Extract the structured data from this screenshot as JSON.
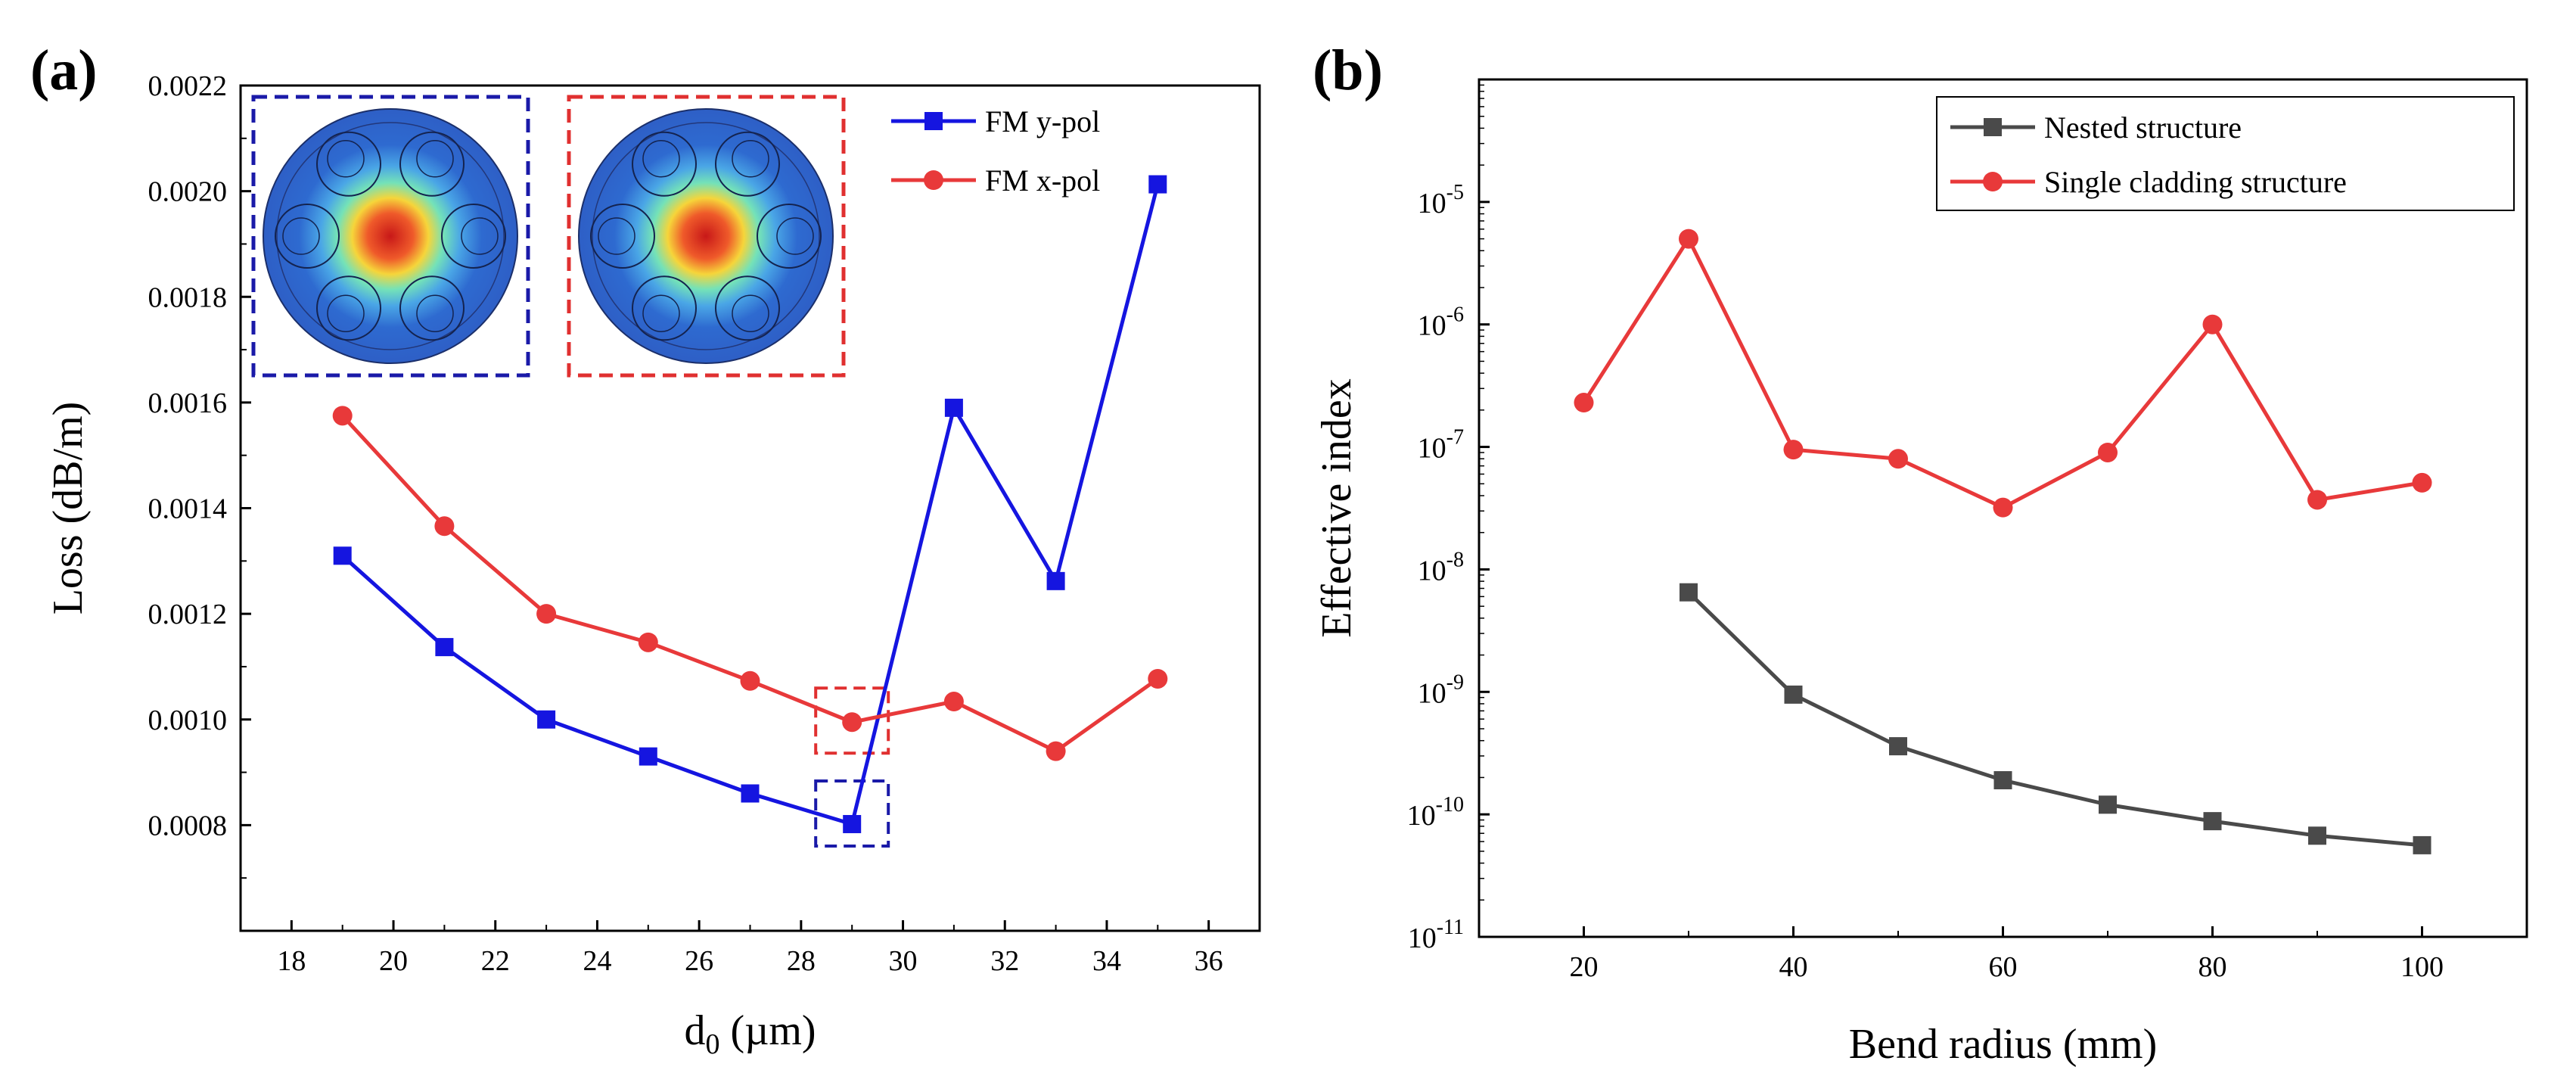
{
  "chart_data": [
    {
      "panel": "(a)",
      "type": "line",
      "xlabel": "d0 (µm)",
      "ylabel": "Loss (dB/m)",
      "xlim": [
        17,
        37
      ],
      "ylim": [
        0.0006,
        0.0022
      ],
      "xticks": [
        "18",
        "20",
        "22",
        "24",
        "26",
        "28",
        "30",
        "32",
        "34",
        "36"
      ],
      "yticks": [
        "0.0008",
        "0.0010",
        "0.0012",
        "0.0014",
        "0.0016",
        "0.0018",
        "0.0020",
        "0.0022"
      ],
      "x": [
        19,
        21,
        23,
        25,
        27,
        29,
        31,
        33,
        35
      ],
      "series": [
        {
          "name": "FM y-pol",
          "color": "#1515e0",
          "marker": "square",
          "values": [
            0.00131,
            0.001137,
            0.001,
            0.00093,
            0.00086,
            0.000802,
            0.00159,
            0.001262,
            0.002013
          ]
        },
        {
          "name": "FM x-pol",
          "color": "#e8393a",
          "marker": "circle",
          "values": [
            0.001575,
            0.001366,
            0.0012,
            0.001146,
            0.001073,
            0.000995,
            0.001034,
            0.00094,
            0.001077
          ]
        }
      ],
      "legend": "top-right",
      "insets": [
        "y-pol mode field",
        "x-pol mode field"
      ]
    },
    {
      "panel": "(b)",
      "type": "line",
      "xlabel": "Bend radius (mm)",
      "ylabel": "Effective index",
      "yscale": "log",
      "xlim": [
        10,
        110
      ],
      "ylim": [
        1e-11,
        0.0001
      ],
      "xticks": [
        "20",
        "40",
        "60",
        "80",
        "100"
      ],
      "x": [
        20,
        30,
        40,
        50,
        60,
        70,
        80,
        90,
        100
      ],
      "series": [
        {
          "name": "Nested structure",
          "color": "#4a4a4a",
          "marker": "square",
          "x": [
            30,
            40,
            50,
            60,
            70,
            80,
            90,
            100
          ],
          "values": [
            6.5e-09,
            9.5e-10,
            3.6e-10,
            1.9e-10,
            1.2e-10,
            8.8e-11,
            6.7e-11,
            5.6e-11
          ]
        },
        {
          "name": "Single cladding structure",
          "color": "#e8393a",
          "marker": "circle",
          "x": [
            20,
            30,
            40,
            50,
            60,
            70,
            80,
            90,
            100
          ],
          "values": [
            2.3e-07,
            5e-06,
            9.5e-08,
            8e-08,
            3.2e-08,
            9e-08,
            1e-06,
            3.7e-08,
            5.1e-08
          ]
        }
      ],
      "legend": "top-right"
    }
  ]
}
